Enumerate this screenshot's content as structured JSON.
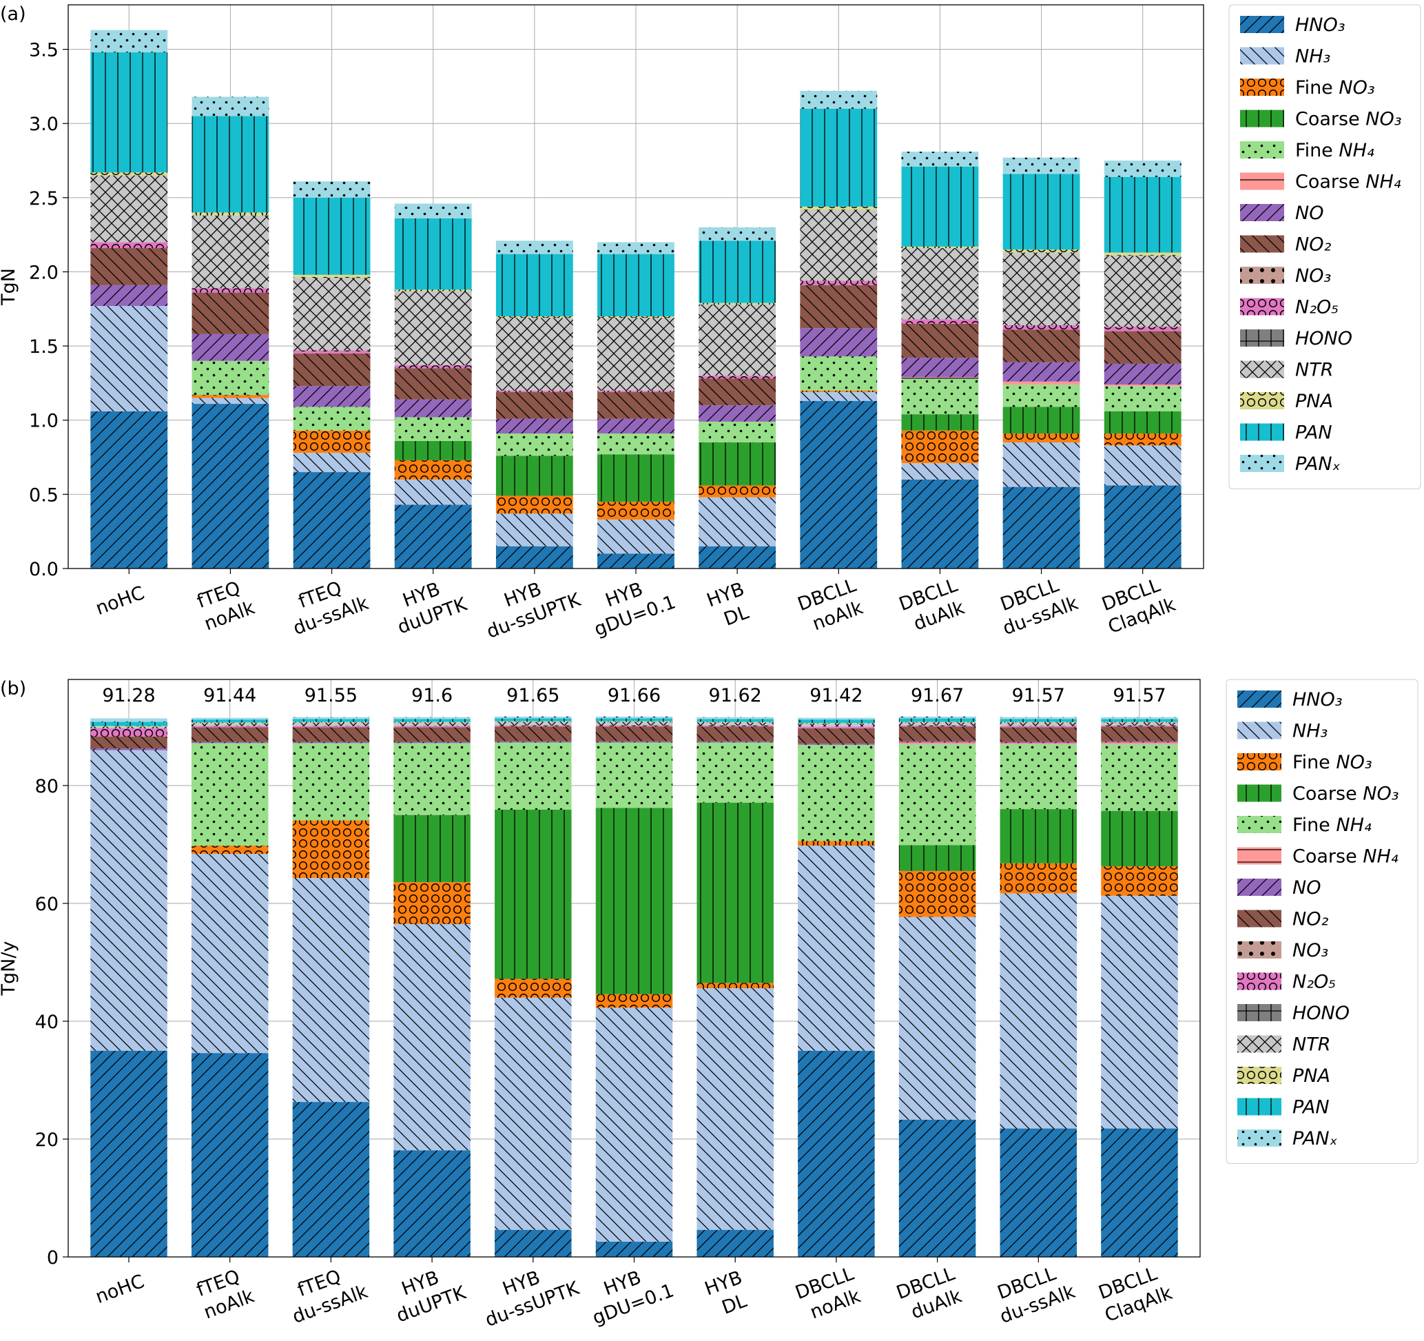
{
  "chart_data": [
    {
      "type": "stacked_bar",
      "panel_label": "(a)",
      "ylabel": "TgN",
      "categories": [
        "noHC",
        "fTEQ noAlk",
        "fTEQ du-ssAlk",
        "HYB duUPTK",
        "HYB du-ssUPTK",
        "HYB gDU=0.1",
        "HYB DL",
        "DBCLL noAlk",
        "DBCLL duAlk",
        "DBCLL du-ssAlk",
        "DBCLL ClaqAlk"
      ],
      "ylim": [
        0,
        3.8
      ],
      "yticks": [
        {
          "value": 0,
          "label": "0.0"
        },
        0.5,
        {
          "value": 1,
          "label": "1.0"
        },
        1.5,
        {
          "value": 2,
          "label": "2.0"
        },
        2.5,
        {
          "value": 3,
          "label": "3.0"
        },
        3.5
      ],
      "grid": true,
      "legend": "outside right",
      "series": [
        {
          "name": "HNO₃",
          "color": "#1f77b4",
          "hatch": "/",
          "values": [
            1.06,
            1.11,
            0.65,
            0.43,
            0.15,
            0.1,
            0.15,
            1.13,
            0.6,
            0.55,
            0.56
          ]
        },
        {
          "name": "NH₃",
          "color": "#aec7e8",
          "hatch": "\\",
          "values": [
            0.71,
            0.04,
            0.13,
            0.17,
            0.22,
            0.23,
            0.33,
            0.06,
            0.11,
            0.3,
            0.27
          ]
        },
        {
          "name": "Fine NO₃",
          "color": "#ff7f0e",
          "hatch": "o",
          "values": [
            0,
            0.02,
            0.15,
            0.13,
            0.12,
            0.12,
            0.08,
            0.01,
            0.22,
            0.06,
            0.08
          ]
        },
        {
          "name": "Coarse NO₃",
          "color": "#2ca02c",
          "hatch": "|",
          "values": [
            0,
            0,
            0,
            0.13,
            0.27,
            0.32,
            0.29,
            0,
            0.11,
            0.18,
            0.15
          ]
        },
        {
          "name": "Fine NH₄",
          "color": "#98df8a",
          "hatch": ".",
          "values": [
            0,
            0.23,
            0.16,
            0.16,
            0.15,
            0.14,
            0.14,
            0.23,
            0.24,
            0.15,
            0.17
          ]
        },
        {
          "name": "Coarse NH₄",
          "color": "#ff9896",
          "hatch": "-",
          "values": [
            0,
            0,
            0,
            0,
            0,
            0,
            0,
            0,
            0.01,
            0.02,
            0.01
          ]
        },
        {
          "name": "NO",
          "color": "#9467bd",
          "hatch": "/",
          "values": [
            0.14,
            0.18,
            0.14,
            0.12,
            0.1,
            0.1,
            0.11,
            0.19,
            0.13,
            0.13,
            0.14
          ]
        },
        {
          "name": "NO₂",
          "color": "#8c564b",
          "hatch": "\\",
          "values": [
            0.25,
            0.28,
            0.22,
            0.21,
            0.18,
            0.18,
            0.18,
            0.29,
            0.23,
            0.22,
            0.22
          ]
        },
        {
          "name": "NO₃",
          "color": "#c49c94",
          "hatch": "*",
          "values": [
            0,
            0,
            0,
            0,
            0,
            0,
            0,
            0,
            0,
            0,
            0
          ]
        },
        {
          "name": "N₂O₅",
          "color": "#e377c2",
          "hatch": "o",
          "values": [
            0.04,
            0.03,
            0.02,
            0.02,
            0.01,
            0.01,
            0.02,
            0.03,
            0.03,
            0.03,
            0.03
          ]
        },
        {
          "name": "HONO",
          "color": "#7f7f7f",
          "hatch": "+",
          "values": [
            0,
            0,
            0,
            0,
            0,
            0,
            0,
            0,
            0,
            0,
            0
          ]
        },
        {
          "name": "NTR",
          "color": "#c7c7c7",
          "hatch": "x",
          "values": [
            0.45,
            0.49,
            0.49,
            0.5,
            0.49,
            0.49,
            0.48,
            0.48,
            0.48,
            0.49,
            0.48
          ]
        },
        {
          "name": "PNA",
          "color": "#dbdb8d",
          "hatch": "O",
          "values": [
            0.02,
            0.02,
            0.02,
            0.01,
            0.01,
            0.01,
            0.01,
            0.02,
            0.01,
            0.02,
            0.02
          ]
        },
        {
          "name": "PAN",
          "color": "#17becf",
          "hatch": "|",
          "values": [
            0.81,
            0.65,
            0.52,
            0.48,
            0.42,
            0.42,
            0.42,
            0.66,
            0.54,
            0.51,
            0.51
          ]
        },
        {
          "name": "PANₓ",
          "color": "#9edae5",
          "hatch": ".",
          "values": [
            0.15,
            0.13,
            0.11,
            0.1,
            0.09,
            0.08,
            0.09,
            0.12,
            0.1,
            0.11,
            0.11
          ]
        }
      ]
    },
    {
      "type": "stacked_bar",
      "panel_label": "(b)",
      "ylabel": "TgN/y",
      "categories": [
        "noHC",
        "fTEQ noAlk",
        "fTEQ du-ssAlk",
        "HYB duUPTK",
        "HYB du-ssUPTK",
        "HYB gDU=0.1",
        "HYB DL",
        "DBCLL noAlk",
        "DBCLL duAlk",
        "DBCLL du-ssAlk",
        "DBCLL ClaqAlk"
      ],
      "totals": [
        91.28,
        91.44,
        91.55,
        91.6,
        91.65,
        91.66,
        91.62,
        91.42,
        91.67,
        91.57,
        91.57
      ],
      "ylim": [
        0,
        98
      ],
      "yticks": [
        0,
        20,
        40,
        60,
        80
      ],
      "grid": true,
      "legend": "outside right",
      "series": [
        {
          "name": "HNO₃",
          "color": "#1f77b4",
          "hatch": "/",
          "values": [
            35.0,
            34.6,
            26.3,
            18.1,
            4.6,
            2.6,
            4.6,
            35.0,
            23.3,
            21.8,
            21.8
          ]
        },
        {
          "name": "NH₃",
          "color": "#aec7e8",
          "hatch": "\\",
          "values": [
            51.0,
            33.8,
            38.0,
            38.4,
            39.4,
            39.7,
            41.0,
            34.8,
            34.4,
            39.9,
            39.5
          ]
        },
        {
          "name": "Fine NO₃",
          "color": "#ff7f0e",
          "hatch": "o",
          "values": [
            0,
            1.4,
            9.8,
            7.1,
            3.2,
            2.3,
            0.9,
            0.8,
            7.8,
            5.1,
            5.0
          ]
        },
        {
          "name": "Coarse NO₃",
          "color": "#2ca02c",
          "hatch": "|",
          "values": [
            0,
            0,
            0,
            11.4,
            28.7,
            31.6,
            30.6,
            0,
            4.4,
            9.2,
            9.4
          ]
        },
        {
          "name": "Fine NH₄",
          "color": "#98df8a",
          "hatch": ".",
          "values": [
            0,
            17.4,
            13.1,
            12.2,
            11.4,
            11.1,
            10.2,
            16.3,
            17.1,
            11.0,
            11.3
          ]
        },
        {
          "name": "Coarse NH₄",
          "color": "#ff9896",
          "hatch": "-",
          "values": [
            0,
            0,
            0,
            0,
            0,
            0,
            0,
            0,
            0.3,
            0.2,
            0.3
          ]
        },
        {
          "name": "NO",
          "color": "#9467bd",
          "hatch": "/",
          "values": [
            0.3,
            0.2,
            0.2,
            0.2,
            0.2,
            0.2,
            0.2,
            0.2,
            0.2,
            0.2,
            0.2
          ]
        },
        {
          "name": "NO₂",
          "color": "#8c564b",
          "hatch": "\\",
          "values": [
            2.0,
            2.5,
            2.5,
            2.5,
            2.5,
            2.5,
            2.5,
            2.6,
            2.5,
            2.5,
            2.5
          ]
        },
        {
          "name": "NO₃",
          "color": "#c49c94",
          "hatch": "*",
          "values": [
            0,
            0,
            0,
            0,
            0,
            0,
            0,
            0,
            0,
            0,
            0
          ]
        },
        {
          "name": "N₂O₅",
          "color": "#e377c2",
          "hatch": "o",
          "values": [
            1.4,
            0.2,
            0.2,
            0.2,
            0.2,
            0.2,
            0.2,
            0.3,
            0.2,
            0.2,
            0.2
          ]
        },
        {
          "name": "HONO",
          "color": "#7f7f7f",
          "hatch": "+",
          "values": [
            0,
            0,
            0,
            0,
            0,
            0,
            0,
            0,
            0,
            0,
            0
          ]
        },
        {
          "name": "NTR",
          "color": "#c7c7c7",
          "hatch": "x",
          "values": [
            0.3,
            0.5,
            0.6,
            0.6,
            0.6,
            0.6,
            0.5,
            0.5,
            0.5,
            0.6,
            0.5
          ]
        },
        {
          "name": "PNA",
          "color": "#dbdb8d",
          "hatch": "O",
          "values": [
            0.1,
            0.1,
            0.1,
            0.1,
            0.1,
            0.1,
            0.1,
            0.1,
            0.1,
            0.1,
            0.1
          ]
        },
        {
          "name": "PAN",
          "color": "#17becf",
          "hatch": "|",
          "values": [
            0.7,
            0.5,
            0.5,
            0.5,
            0.5,
            0.5,
            0.5,
            0.6,
            0.6,
            0.5,
            0.5
          ]
        },
        {
          "name": "PANₓ",
          "color": "#9edae5",
          "hatch": ".",
          "values": [
            0.6,
            0.3,
            0.3,
            0.3,
            0.3,
            0.3,
            0.3,
            0.3,
            0.3,
            0.3,
            0.3
          ]
        }
      ]
    }
  ]
}
